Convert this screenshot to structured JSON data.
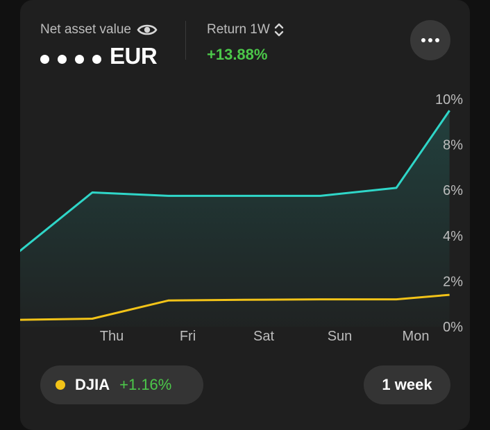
{
  "summary": {
    "nav_label": "Net asset value",
    "nav_currency": "EUR",
    "return_label": "Return 1W",
    "return_value": "+13.88%"
  },
  "benchmark": {
    "name": "DJIA",
    "change": "+1.16%",
    "color": "#f2c318"
  },
  "period_button": "1 week",
  "icons": {
    "visibility": "eye-icon",
    "sort": "sort-updown-icon",
    "more": "more-horizontal-icon"
  },
  "colors": {
    "portfolio_line": "#2fd6c8",
    "benchmark_line": "#f2c318",
    "positive": "#4cc84a"
  },
  "chart_data": {
    "type": "line",
    "categories": [
      "Thu",
      "Fri",
      "Sat",
      "Sun",
      "Mon"
    ],
    "y_ticks": [
      "0%",
      "2%",
      "4%",
      "6%",
      "8%",
      "10%"
    ],
    "ylim": [
      0,
      10
    ],
    "series": [
      {
        "values": [
          3.2,
          5.9,
          5.75,
          5.75,
          5.75,
          6.1,
          9.5
        ],
        "x": [
          -1,
          0,
          1,
          2,
          3,
          4,
          4.7
        ],
        "color": "#2fd6c8",
        "fill": true
      },
      {
        "name": "DJIA",
        "values": [
          0.3,
          0.35,
          1.15,
          1.18,
          1.2,
          1.2,
          1.4
        ],
        "x": [
          -1,
          0,
          1,
          2,
          3,
          4,
          4.7
        ],
        "color": "#f2c318",
        "fill": false
      }
    ]
  }
}
